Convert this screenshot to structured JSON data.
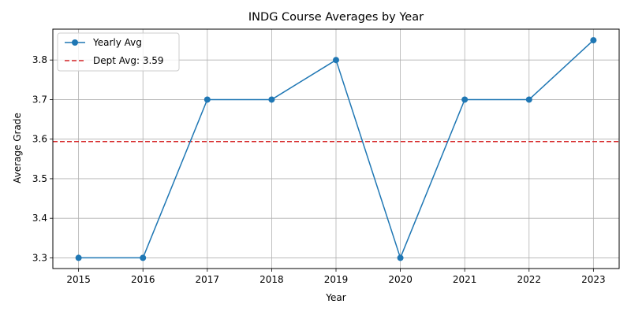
{
  "chart_data": {
    "type": "line",
    "title": "INDG Course Averages by Year",
    "xlabel": "Year",
    "ylabel": "Average Grade",
    "x": [
      2015,
      2016,
      2017,
      2018,
      2019,
      2020,
      2021,
      2022,
      2023
    ],
    "series": [
      {
        "name": "Yearly Avg",
        "values": [
          3.3,
          3.3,
          3.7,
          3.7,
          3.8,
          3.3,
          3.7,
          3.7,
          3.85
        ],
        "color": "#1f77b4",
        "marker": "circle"
      }
    ],
    "reference_line": {
      "name": "Dept Avg: 3.59",
      "value": 3.594,
      "color": "#d62728",
      "style": "dashed"
    },
    "yticks": [
      "3.3",
      "3.4",
      "3.5",
      "3.6",
      "3.7",
      "3.8"
    ],
    "xlim": [
      2014.6,
      2023.4
    ],
    "ylim": [
      3.273,
      3.878
    ],
    "grid": true,
    "legend_position": "upper-left"
  }
}
